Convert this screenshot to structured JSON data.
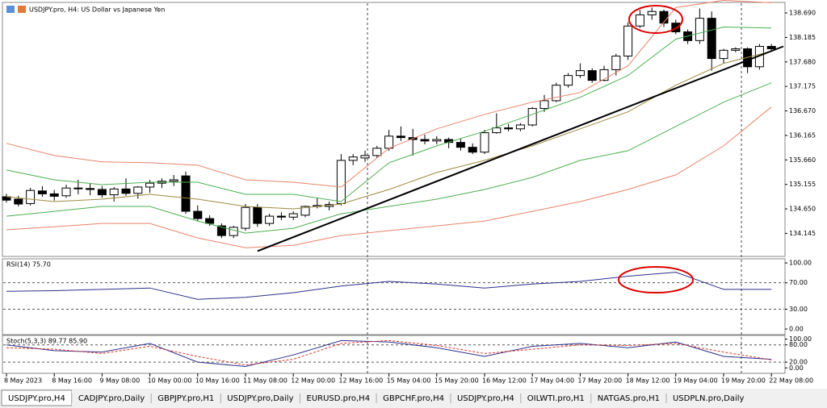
{
  "chart_data": [
    {
      "type": "candlestick",
      "title": "USDJPY.pro, H4:  US Dollar vs Japanese Yen",
      "categories": [
        "8 May 2023",
        null,
        null,
        null,
        "8 May 16:00",
        null,
        null,
        null,
        "9 May 08:00",
        null,
        null,
        null,
        "10 May 00:00",
        null,
        null,
        null,
        "10 May 16:00",
        null,
        null,
        null,
        "11 May 08:00",
        null,
        null,
        null,
        "12 May 00:00",
        null,
        null,
        null,
        "12 May 16:00",
        null,
        null,
        null,
        "15 May 04:00",
        null,
        null,
        null,
        "15 May 20:00",
        null,
        null,
        null,
        "16 May 12:00",
        null,
        null,
        null,
        "17 May 04:00",
        null,
        null,
        null,
        "17 May 20:00",
        null,
        null,
        null,
        "18 May 12:00",
        null,
        null,
        null,
        "19 May 04:00",
        null,
        null,
        null,
        "19 May 20:00",
        null,
        null,
        null,
        "22 May 08:00"
      ],
      "open": [
        134.9,
        134.85,
        134.76,
        135.02,
        134.96,
        134.92,
        135.08,
        135.07,
        135.05,
        134.94,
        135.06,
        134.97,
        135.1,
        135.18,
        135.22,
        135.33,
        134.6,
        134.45,
        134.3,
        134.1,
        134.25,
        134.68,
        134.35,
        134.5,
        134.48,
        134.52,
        134.7,
        134.7,
        134.76,
        135.65,
        135.7,
        135.75,
        135.9,
        136.15,
        136.12,
        136.08,
        136.05,
        136.08,
        136.02,
        135.92,
        135.82,
        136.22,
        136.32,
        136.3,
        136.38,
        136.72,
        136.88,
        137.2,
        137.4,
        137.5,
        137.3,
        137.52,
        137.8,
        138.42,
        138.65,
        138.72,
        138.48,
        138.3,
        138.12,
        138.58,
        137.75,
        137.92,
        137.95,
        137.58,
        138.0
      ],
      "high": [
        134.96,
        134.92,
        135.08,
        135.12,
        135.04,
        135.15,
        135.25,
        135.17,
        135.12,
        135.1,
        135.28,
        135.12,
        135.25,
        135.28,
        135.35,
        135.42,
        134.72,
        134.52,
        134.35,
        134.3,
        134.75,
        134.75,
        134.55,
        134.58,
        134.6,
        134.72,
        134.88,
        134.8,
        135.78,
        135.78,
        135.85,
        135.95,
        136.28,
        136.35,
        136.3,
        136.18,
        136.15,
        136.12,
        136.1,
        136.0,
        136.28,
        136.62,
        136.4,
        136.42,
        136.75,
        137.0,
        137.25,
        137.45,
        137.65,
        137.55,
        137.6,
        137.85,
        138.5,
        138.75,
        138.8,
        138.76,
        138.55,
        138.35,
        138.78,
        138.72,
        137.95,
        137.98,
        137.98,
        138.05,
        138.05
      ],
      "low": [
        134.78,
        134.7,
        134.72,
        134.9,
        134.82,
        134.88,
        134.95,
        134.93,
        134.88,
        134.8,
        134.92,
        134.86,
        134.98,
        135.08,
        135.12,
        134.55,
        134.4,
        134.3,
        134.05,
        134.05,
        134.2,
        134.28,
        134.3,
        134.42,
        134.42,
        134.48,
        134.66,
        134.62,
        134.72,
        135.55,
        135.62,
        135.7,
        135.85,
        136.05,
        135.75,
        135.98,
        135.98,
        135.9,
        135.85,
        135.78,
        135.78,
        136.2,
        136.25,
        136.25,
        136.35,
        136.65,
        136.85,
        137.15,
        137.35,
        137.25,
        137.28,
        137.4,
        137.72,
        138.38,
        138.55,
        138.4,
        138.25,
        138.05,
        138.05,
        137.5,
        137.65,
        137.88,
        137.45,
        137.52,
        137.9
      ],
      "close": [
        134.83,
        134.75,
        135.03,
        134.96,
        134.91,
        135.08,
        135.07,
        135.05,
        134.94,
        135.06,
        134.97,
        135.1,
        135.18,
        135.22,
        135.25,
        134.6,
        134.45,
        134.35,
        134.1,
        134.27,
        134.68,
        134.35,
        134.5,
        134.48,
        134.55,
        134.7,
        134.72,
        134.74,
        135.65,
        135.72,
        135.75,
        135.9,
        136.15,
        136.12,
        136.08,
        136.05,
        136.08,
        136.02,
        135.92,
        135.82,
        136.22,
        136.32,
        136.3,
        136.38,
        136.72,
        136.88,
        137.2,
        137.4,
        137.5,
        137.3,
        137.52,
        137.8,
        138.42,
        138.65,
        138.72,
        138.48,
        138.3,
        138.12,
        138.58,
        137.75,
        137.92,
        137.95,
        137.58,
        138.0,
        137.95
      ],
      "up_color": "#ffffff",
      "down_color": "#000000",
      "ylim": [
        133.67,
        138.89
      ],
      "yticks": [
        {
          "value": 138.69,
          "label": "138.690"
        },
        138.185,
        {
          "value": 137.68,
          "label": "137.680"
        },
        137.175,
        {
          "value": 136.67,
          "label": "136.670"
        },
        136.165,
        {
          "value": 135.66,
          "label": "135.660"
        },
        135.155,
        {
          "value": 134.65,
          "label": "134.650"
        },
        134.145
      ],
      "series": [
        {
          "color": "#e8836a",
          "x": [
            0,
            4,
            8,
            12,
            16,
            20,
            24,
            28,
            32,
            36,
            40,
            44,
            48,
            52,
            56,
            60,
            64
          ],
          "values": [
            136.0,
            135.75,
            135.62,
            135.6,
            135.55,
            135.25,
            135.2,
            135.1,
            135.9,
            136.3,
            136.6,
            136.85,
            137.05,
            137.6,
            138.8,
            138.95,
            138.9
          ]
        },
        {
          "color": "#e8836a",
          "x": [
            0,
            4,
            8,
            12,
            16,
            20,
            24,
            28,
            32,
            36,
            40,
            44,
            48,
            52,
            56,
            60,
            64
          ],
          "values": [
            134.22,
            134.28,
            134.35,
            134.35,
            134.05,
            133.85,
            133.9,
            134.1,
            134.2,
            134.3,
            134.4,
            134.6,
            134.8,
            135.05,
            135.35,
            135.95,
            136.75
          ]
        },
        {
          "color": "#4caf50",
          "x": [
            0,
            4,
            8,
            12,
            16,
            20,
            24,
            28,
            32,
            36,
            40,
            44,
            48,
            52,
            56,
            60,
            64
          ],
          "values": [
            135.45,
            135.25,
            135.15,
            135.2,
            135.2,
            134.95,
            134.95,
            134.8,
            135.6,
            135.95,
            136.25,
            136.6,
            136.95,
            137.4,
            138.15,
            138.4,
            138.38
          ]
        },
        {
          "color": "#4caf50",
          "x": [
            0,
            4,
            8,
            12,
            16,
            20,
            24,
            28,
            32,
            36,
            40,
            44,
            48,
            52,
            56,
            60,
            64
          ],
          "values": [
            134.5,
            134.6,
            134.7,
            134.7,
            134.4,
            134.15,
            134.25,
            134.55,
            134.7,
            134.85,
            135.05,
            135.3,
            135.65,
            135.85,
            136.35,
            136.85,
            137.25
          ]
        },
        {
          "color": "#9a8a40",
          "x": [
            0,
            4,
            8,
            12,
            16,
            20,
            24,
            28,
            32,
            36,
            40,
            44,
            48,
            52,
            56,
            60,
            64
          ],
          "values": [
            134.9,
            134.8,
            134.85,
            134.95,
            134.85,
            134.7,
            134.65,
            134.75,
            135.05,
            135.4,
            135.65,
            135.95,
            136.3,
            136.65,
            137.2,
            137.65,
            137.9
          ]
        },
        {
          "color": "#000000",
          "x": [
            21,
            65
          ],
          "values": [
            133.78,
            138.0
          ]
        }
      ]
    },
    {
      "type": "line",
      "title": "RSI(14) 75.70",
      "ylim": [
        -8.5,
        105
      ],
      "yticks": [
        {
          "value": 100,
          "label": "100.00"
        },
        {
          "value": 70,
          "label": "70.00"
        },
        {
          "value": 30,
          "label": "30.00"
        },
        {
          "value": 0,
          "label": "0.00"
        }
      ],
      "levels": [
        70,
        30
      ],
      "series": [
        {
          "color": "#2e2e8c",
          "x": [
            0,
            4,
            8,
            12,
            16,
            20,
            24,
            28,
            32,
            36,
            40,
            44,
            48,
            52,
            56,
            60,
            64
          ],
          "values": [
            57,
            58,
            60,
            62,
            45,
            48,
            55,
            65,
            72,
            68,
            62,
            68,
            72,
            80,
            86,
            60,
            60
          ]
        }
      ]
    },
    {
      "type": "line",
      "title": "Stoch(5,3,3) 89.77 85.90",
      "ylim": [
        -16,
        110
      ],
      "yticks": [
        {
          "value": 100,
          "label": "100.00"
        },
        {
          "value": 80,
          "label": "80.00"
        },
        {
          "value": 20,
          "label": "20.00"
        },
        {
          "value": 0,
          "label": "0.00"
        }
      ],
      "levels": [
        80,
        20
      ],
      "series": [
        {
          "color": "#2e2e8c",
          "x": [
            0,
            4,
            8,
            12,
            16,
            20,
            24,
            28,
            32,
            36,
            40,
            44,
            48,
            52,
            56,
            60,
            64
          ],
          "values": [
            80,
            60,
            55,
            85,
            20,
            5,
            45,
            95,
            90,
            70,
            40,
            75,
            85,
            70,
            90,
            40,
            30
          ]
        },
        {
          "color": "#d9362b",
          "dash": true,
          "x": [
            0,
            4,
            8,
            12,
            16,
            20,
            24,
            28,
            32,
            36,
            40,
            44,
            48,
            52,
            56,
            60,
            64
          ],
          "values": [
            70,
            65,
            50,
            75,
            40,
            10,
            30,
            85,
            95,
            78,
            50,
            65,
            80,
            78,
            85,
            55,
            28
          ]
        }
      ]
    }
  ],
  "tabs": [
    "USDJPY.pro,H4",
    "CADJPY.pro,Daily",
    "GBPJPY.pro,H1",
    "USDJPY.pro,Daily",
    "EURUSD.pro,H4",
    "GBPCHF.pro,H4",
    "USDJPY.pro,H4",
    "OILWTI.pro,H1",
    "NATGAS.pro,H1",
    "USDPLN.pro,Daily"
  ]
}
